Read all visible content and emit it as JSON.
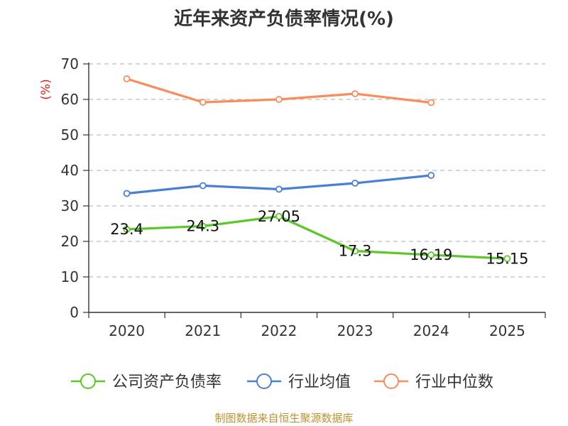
{
  "chart_data": {
    "type": "line",
    "title": "近年来资产负债率情况(%)",
    "ylabel": "(%)",
    "categories": [
      "2020",
      "2021",
      "2022",
      "2023",
      "2024",
      "2025"
    ],
    "ylim": [
      0,
      70
    ],
    "yticks": [
      0,
      10,
      20,
      30,
      40,
      50,
      60,
      70
    ],
    "grid": "horizontal-dashed",
    "legend_position": "bottom",
    "series": [
      {
        "name": "公司资产负债率",
        "color": "#5cc72a",
        "values": [
          23.4,
          24.3,
          27.05,
          17.3,
          16.19,
          15.15
        ],
        "data_labels": [
          "23.4",
          "24.3",
          "27.05",
          "17.3",
          "16.19",
          "15.15"
        ]
      },
      {
        "name": "行业均值",
        "color": "#4a7fd6",
        "values": [
          33.5,
          35.7,
          34.7,
          36.4,
          38.6,
          null
        ]
      },
      {
        "name": "行业中位数",
        "color": "#f98c5a",
        "values": [
          65.8,
          59.2,
          60.0,
          61.6,
          59.1,
          null
        ]
      }
    ]
  },
  "source": "制图数据来自恒生聚源数据库"
}
